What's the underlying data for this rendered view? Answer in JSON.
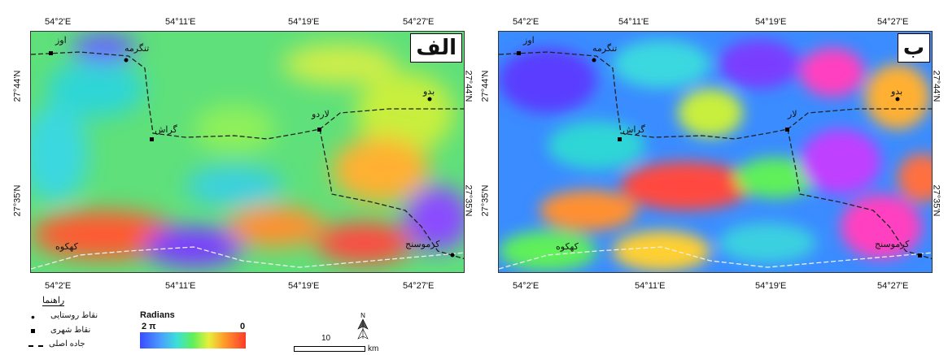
{
  "panels": [
    {
      "letter": "الف",
      "top_ticks": [
        "54°2'E",
        "54°11'E",
        "54°19'E",
        "54°27'E"
      ],
      "bottom_ticks": [
        "54°2'E",
        "54°11'E",
        "54°19'E",
        "54°27'E"
      ],
      "lat_ticks": [
        "27°44'N",
        "27°35'N"
      ],
      "places": [
        "اوز",
        "تنگرمه",
        "گراش",
        "لاردو",
        "بدو",
        "کهکوه",
        "کرموسنج"
      ]
    },
    {
      "letter": "ب",
      "top_ticks": [
        "54°2'E",
        "54°11'E",
        "54°19'E",
        "54°27'E"
      ],
      "bottom_ticks": [
        "54°2'E",
        "54°11'E",
        "54°19'E",
        "54°27'E"
      ],
      "lat_ticks": [
        "27°44'N",
        "27°35'N"
      ],
      "places": [
        "اوز",
        "تنگرمه",
        "گراش",
        "لار",
        "بدو",
        "کهکوه",
        "کرموسنج"
      ]
    }
  ],
  "legend": {
    "title": "راهنما",
    "items": [
      "نقاط روستایی",
      "نقاط شهری",
      "جاده اصلی"
    ]
  },
  "colorbar": {
    "label": "Radians",
    "left_label": "2 π",
    "right_label": "0",
    "colors": [
      "#3a4bff",
      "#4aa0ff",
      "#3be0d8",
      "#5ff05a",
      "#e8ef3a",
      "#ff9a2a",
      "#ff3a2a"
    ]
  },
  "scale": {
    "value": "10",
    "unit": "km"
  },
  "north_label": "N"
}
